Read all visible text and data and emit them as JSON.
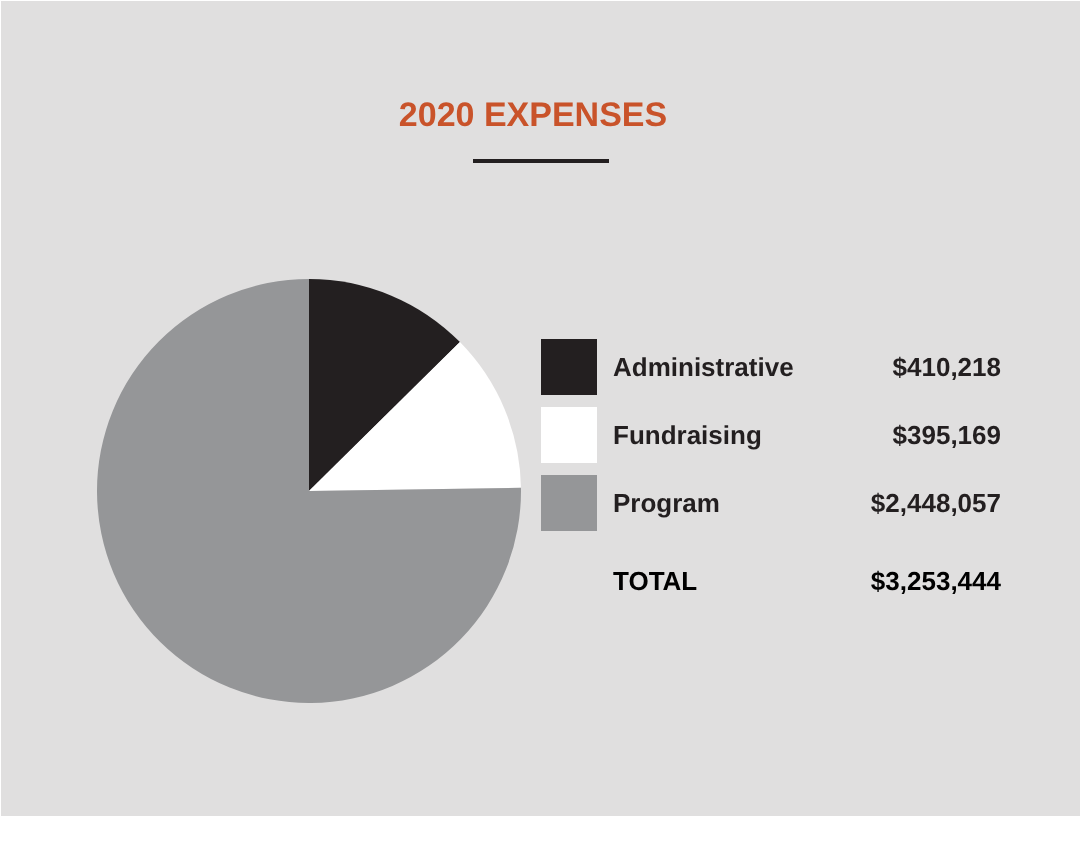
{
  "chart_data": {
    "type": "pie",
    "title": "2020 EXPENSES",
    "categories": [
      "Administrative",
      "Fundraising",
      "Program"
    ],
    "values": [
      410218,
      395169,
      2448057
    ],
    "colors": [
      "#231f20",
      "#ffffff",
      "#959698"
    ],
    "value_labels": [
      "$410,218",
      "$395,169",
      "$2,448,057"
    ],
    "annotations": [
      "$3,253,444",
      "TOTAL"
    ],
    "legend": "right"
  }
}
